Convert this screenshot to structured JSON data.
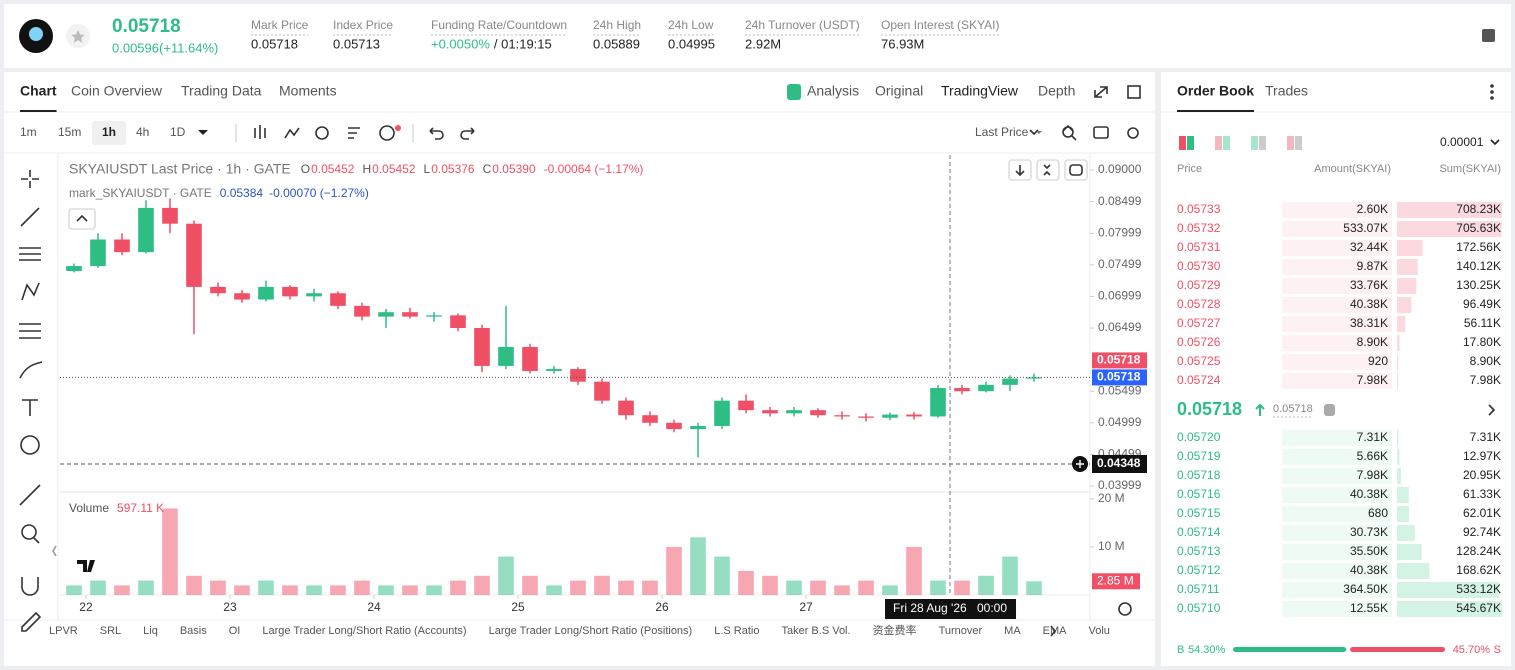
{
  "header": {
    "price": "0.05718",
    "change": "0.00596(+11.64%)",
    "stats": [
      {
        "label": "Mark Price",
        "value": "0.05718"
      },
      {
        "label": "Index Price",
        "value": "0.05713"
      },
      {
        "label": "Funding Rate/Countdown",
        "value": "+0.0050%",
        "value2": "/ 01:19:15"
      },
      {
        "label": "24h High",
        "value": "0.05889"
      },
      {
        "label": "24h Low",
        "value": "0.04995"
      },
      {
        "label": "24h Turnover (USDT)",
        "value": "2.92M"
      },
      {
        "label": "Open Interest (SKYAI)",
        "value": "76.93M"
      }
    ]
  },
  "tabs": [
    "Chart",
    "Coin Overview",
    "Trading Data",
    "Moments"
  ],
  "views": [
    "Analysis",
    "Original",
    "TradingView",
    "Depth"
  ],
  "intervals": [
    "1m",
    "15m",
    "1h",
    "4h",
    "1D"
  ],
  "price_type": "Last Price",
  "chart_data": {
    "type": "candlestick",
    "title": "SKYAIUSDT Last Price · 1h · GATE",
    "ohlc_legend": [
      {
        "key": "O",
        "value": "0.05452"
      },
      {
        "key": "H",
        "value": "0.05452"
      },
      {
        "key": "L",
        "value": "0.05376"
      },
      {
        "key": "C",
        "value": "0.05390"
      }
    ],
    "change": "-0.00064 (−1.17%)",
    "mark_title": "mark_SKYAIUSDT · GATE",
    "mark_value": "0.05384",
    "mark_change": "-0.00070 (−1.27%)",
    "t": [
      22,
      26,
      30,
      34,
      38,
      42,
      46,
      50,
      54,
      58,
      62,
      66,
      70,
      74,
      78,
      82,
      86,
      90,
      94,
      98,
      102,
      106,
      110,
      114,
      118,
      122,
      126,
      130,
      134,
      138,
      142,
      146,
      150,
      154,
      158,
      162,
      166,
      170,
      174,
      178,
      182
    ],
    "ohlc": [
      [
        0.074,
        0.0752,
        0.0738,
        0.0748
      ],
      [
        0.0748,
        0.08,
        0.0745,
        0.079
      ],
      [
        0.079,
        0.08,
        0.0765,
        0.077
      ],
      [
        0.077,
        0.0852,
        0.0768,
        0.084
      ],
      [
        0.084,
        0.0855,
        0.08,
        0.0815
      ],
      [
        0.0815,
        0.082,
        0.064,
        0.0715
      ],
      [
        0.0715,
        0.0722,
        0.07,
        0.0705
      ],
      [
        0.0705,
        0.071,
        0.069,
        0.0695
      ],
      [
        0.0695,
        0.0725,
        0.0692,
        0.0715
      ],
      [
        0.0715,
        0.0718,
        0.0695,
        0.07
      ],
      [
        0.07,
        0.0712,
        0.0692,
        0.0705
      ],
      [
        0.0705,
        0.0708,
        0.068,
        0.0685
      ],
      [
        0.0685,
        0.069,
        0.0662,
        0.0668
      ],
      [
        0.0668,
        0.068,
        0.065,
        0.0675
      ],
      [
        0.0675,
        0.0682,
        0.0665,
        0.0668
      ],
      [
        0.0668,
        0.0675,
        0.066,
        0.067
      ],
      [
        0.067,
        0.0673,
        0.0645,
        0.065
      ],
      [
        0.065,
        0.0655,
        0.058,
        0.059
      ],
      [
        0.059,
        0.0685,
        0.0585,
        0.062
      ],
      [
        0.062,
        0.0625,
        0.0578,
        0.0582
      ],
      [
        0.0582,
        0.059,
        0.0578,
        0.0585
      ],
      [
        0.0585,
        0.0588,
        0.056,
        0.0565
      ],
      [
        0.0565,
        0.057,
        0.053,
        0.0535
      ],
      [
        0.0535,
        0.054,
        0.0505,
        0.0512
      ],
      [
        0.0512,
        0.0518,
        0.0495,
        0.05
      ],
      [
        0.05,
        0.0505,
        0.0485,
        0.049
      ],
      [
        0.049,
        0.05,
        0.0445,
        0.0495
      ],
      [
        0.0495,
        0.054,
        0.049,
        0.0535
      ],
      [
        0.0535,
        0.0545,
        0.0515,
        0.052
      ],
      [
        0.052,
        0.0525,
        0.051,
        0.0515
      ],
      [
        0.0515,
        0.0525,
        0.051,
        0.052
      ],
      [
        0.052,
        0.0523,
        0.0508,
        0.0512
      ],
      [
        0.0512,
        0.0518,
        0.0505,
        0.051
      ],
      [
        0.051,
        0.0515,
        0.0502,
        0.0508
      ],
      [
        0.0508,
        0.0516,
        0.0504,
        0.0513
      ],
      [
        0.0513,
        0.0517,
        0.0505,
        0.051
      ],
      [
        0.051,
        0.056,
        0.0508,
        0.0555
      ],
      [
        0.0555,
        0.056,
        0.0545,
        0.055
      ],
      [
        0.055,
        0.0565,
        0.0548,
        0.056
      ],
      [
        0.056,
        0.0575,
        0.055,
        0.057
      ],
      [
        0.057,
        0.0578,
        0.0565,
        0.05718
      ]
    ],
    "xlim": [
      19.67,
      191.33
    ],
    "xticks": [
      {
        "value": 24,
        "label": "22"
      },
      {
        "value": 48,
        "label": "23"
      },
      {
        "value": 72,
        "label": "24"
      },
      {
        "value": 96,
        "label": "25"
      },
      {
        "value": 120,
        "label": "26"
      },
      {
        "value": 144,
        "label": "27"
      }
    ],
    "ylim": [
      0.03905,
      0.09237
    ],
    "yticks": [
      {
        "value": 0.09,
        "label": "0.09000"
      },
      0.08499,
      0.07999,
      0.07499,
      0.06999,
      0.06499,
      0.05499,
      0.04999,
      0.04499,
      0.03999
    ],
    "last_price": 0.05718,
    "mark_price": 0.05718,
    "crosshair": {
      "price": 0.04348,
      "hour": 168,
      "date": "Fri 28 Aug '26",
      "time": "00:00"
    },
    "volume": {
      "title": "Volume",
      "current": "597.11 K",
      "values": [
        2,
        3,
        2,
        3,
        18,
        4,
        3,
        2,
        3,
        2,
        2,
        2,
        3,
        2,
        2,
        2,
        3,
        4,
        8,
        4,
        2,
        3,
        4,
        3,
        3,
        10,
        12,
        8,
        5,
        4,
        3,
        3,
        2,
        3,
        2,
        10,
        3,
        3,
        4,
        8,
        2.85
      ],
      "ylim": [
        0,
        20.8
      ],
      "yticks": [
        {
          "value": 10,
          "label": "10 M"
        },
        {
          "value": 20,
          "label": "20 M"
        }
      ],
      "last": {
        "value": 2.85,
        "label": "2.85 M"
      }
    },
    "colors": {
      "up": "#2ebd85",
      "down": "#ef5066"
    }
  },
  "indicators": [
    "LPVR",
    "SRL",
    "Liq",
    "Basis",
    "OI",
    "Large Trader Long/Short Ratio (Accounts)",
    "Large Trader Long/Short Ratio (Positions)",
    "L.S Ratio",
    "Taker B.S Vol.",
    "资金费率",
    "Turnover",
    "MA",
    "EMA",
    "Volu"
  ],
  "order_book": {
    "tabs": [
      "Order Book",
      "Trades"
    ],
    "precision": "0.00001",
    "columns": [
      "Price",
      "Amount(SKYAI)",
      "Sum(SKYAI)"
    ],
    "asks": [
      {
        "price": "0.05733",
        "amount": "2.60K",
        "sum": {
          "value": 708230,
          "label": "708.23K"
        }
      },
      {
        "price": "0.05732",
        "amount": "533.07K",
        "sum": {
          "value": 705630,
          "label": "705.63K"
        }
      },
      {
        "price": "0.05731",
        "amount": "32.44K",
        "sum": {
          "value": 172560,
          "label": "172.56K"
        }
      },
      {
        "price": "0.05730",
        "amount": "9.87K",
        "sum": {
          "value": 140120,
          "label": "140.12K"
        }
      },
      {
        "price": "0.05729",
        "amount": "33.76K",
        "sum": {
          "value": 130250,
          "label": "130.25K"
        }
      },
      {
        "price": "0.05728",
        "amount": "40.38K",
        "sum": {
          "value": 96490,
          "label": "96.49K"
        }
      },
      {
        "price": "0.05727",
        "amount": "38.31K",
        "sum": {
          "value": 56110,
          "label": "56.11K"
        }
      },
      {
        "price": "0.05726",
        "amount": "8.90K",
        "sum": {
          "value": 17800,
          "label": "17.80K"
        }
      },
      {
        "price": "0.05725",
        "amount": "920",
        "sum": {
          "value": 8900,
          "label": "8.90K"
        }
      },
      {
        "price": "0.05724",
        "amount": "7.98K",
        "sum": {
          "value": 7980,
          "label": "7.98K"
        }
      }
    ],
    "mid": "0.05718",
    "mid_mark": "0.05718",
    "bids": [
      {
        "price": "0.05720",
        "amount": "7.31K",
        "sum": {
          "value": 7310,
          "label": "7.31K"
        }
      },
      {
        "price": "0.05719",
        "amount": "5.66K",
        "sum": {
          "value": 12970,
          "label": "12.97K"
        }
      },
      {
        "price": "0.05718",
        "amount": "7.98K",
        "sum": {
          "value": 20950,
          "label": "20.95K"
        }
      },
      {
        "price": "0.05716",
        "amount": "40.38K",
        "sum": {
          "value": 61330,
          "label": "61.33K"
        }
      },
      {
        "price": "0.05715",
        "amount": "680",
        "sum": {
          "value": 62010,
          "label": "62.01K"
        }
      },
      {
        "price": "0.05714",
        "amount": "30.73K",
        "sum": {
          "value": 92740,
          "label": "92.74K"
        }
      },
      {
        "price": "0.05713",
        "amount": "35.50K",
        "sum": {
          "value": 128240,
          "label": "128.24K"
        }
      },
      {
        "price": "0.05712",
        "amount": "40.38K",
        "sum": {
          "value": 168620,
          "label": "168.62K"
        }
      },
      {
        "price": "0.05711",
        "amount": "364.50K",
        "sum": {
          "value": 533120,
          "label": "533.12K"
        }
      },
      {
        "price": "0.05710",
        "amount": "12.55K",
        "sum": {
          "value": 545670,
          "label": "545.67K"
        }
      }
    ],
    "ratio": {
      "buy_key": "B",
      "buy": {
        "value": 54.3,
        "label": "54.30%"
      },
      "sell": {
        "value": 45.7,
        "label": "45.70%"
      },
      "sell_key": "S"
    }
  }
}
